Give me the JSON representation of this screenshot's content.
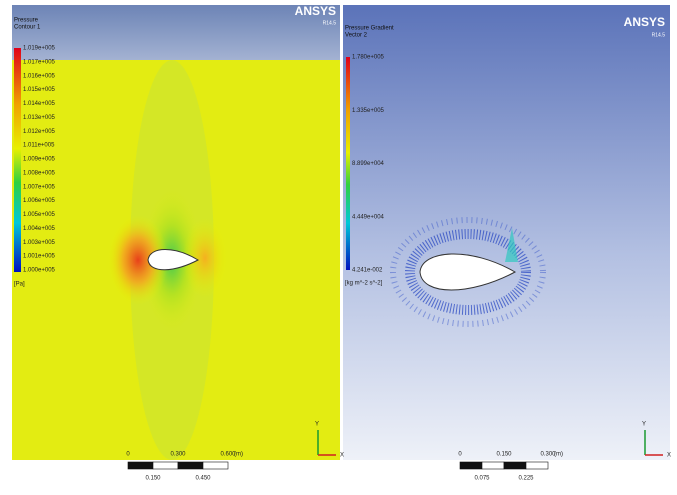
{
  "panels": [
    {
      "title": "Pressure",
      "subtitle": "Contour 1",
      "brand": "ANSYS",
      "version": "R14.5",
      "legend": {
        "labels": [
          "1.019e+005",
          "1.017e+005",
          "1.016e+005",
          "1.015e+005",
          "1.014e+005",
          "1.013e+005",
          "1.012e+005",
          "1.011e+005",
          "1.009e+005",
          "1.008e+005",
          "1.007e+005",
          "1.006e+005",
          "1.005e+005",
          "1.004e+005",
          "1.003e+005",
          "1.001e+005",
          "1.000e+005"
        ],
        "unit": "[Pa]"
      },
      "scale": {
        "top": [
          "0",
          "0.300",
          "0.600"
        ],
        "unit": "(m)",
        "bottom": [
          "0.150",
          "0.450"
        ]
      },
      "axes": [
        "Y",
        "X"
      ]
    },
    {
      "title": "Pressure Gradient",
      "subtitle": "Vector 2",
      "brand": "ANSYS",
      "version": "R14.5",
      "legend": {
        "labels": [
          "1.780e+005",
          "1.335e+005",
          "8.899e+004",
          "4.449e+004",
          "4.241e-002"
        ],
        "unit": "[kg m^-2 s^-2]"
      },
      "scale": {
        "top": [
          "0",
          "0.150",
          "0.300"
        ],
        "unit": "(m)",
        "bottom": [
          "0.075",
          "0.225"
        ]
      },
      "axes": [
        "Y",
        "X"
      ]
    }
  ]
}
